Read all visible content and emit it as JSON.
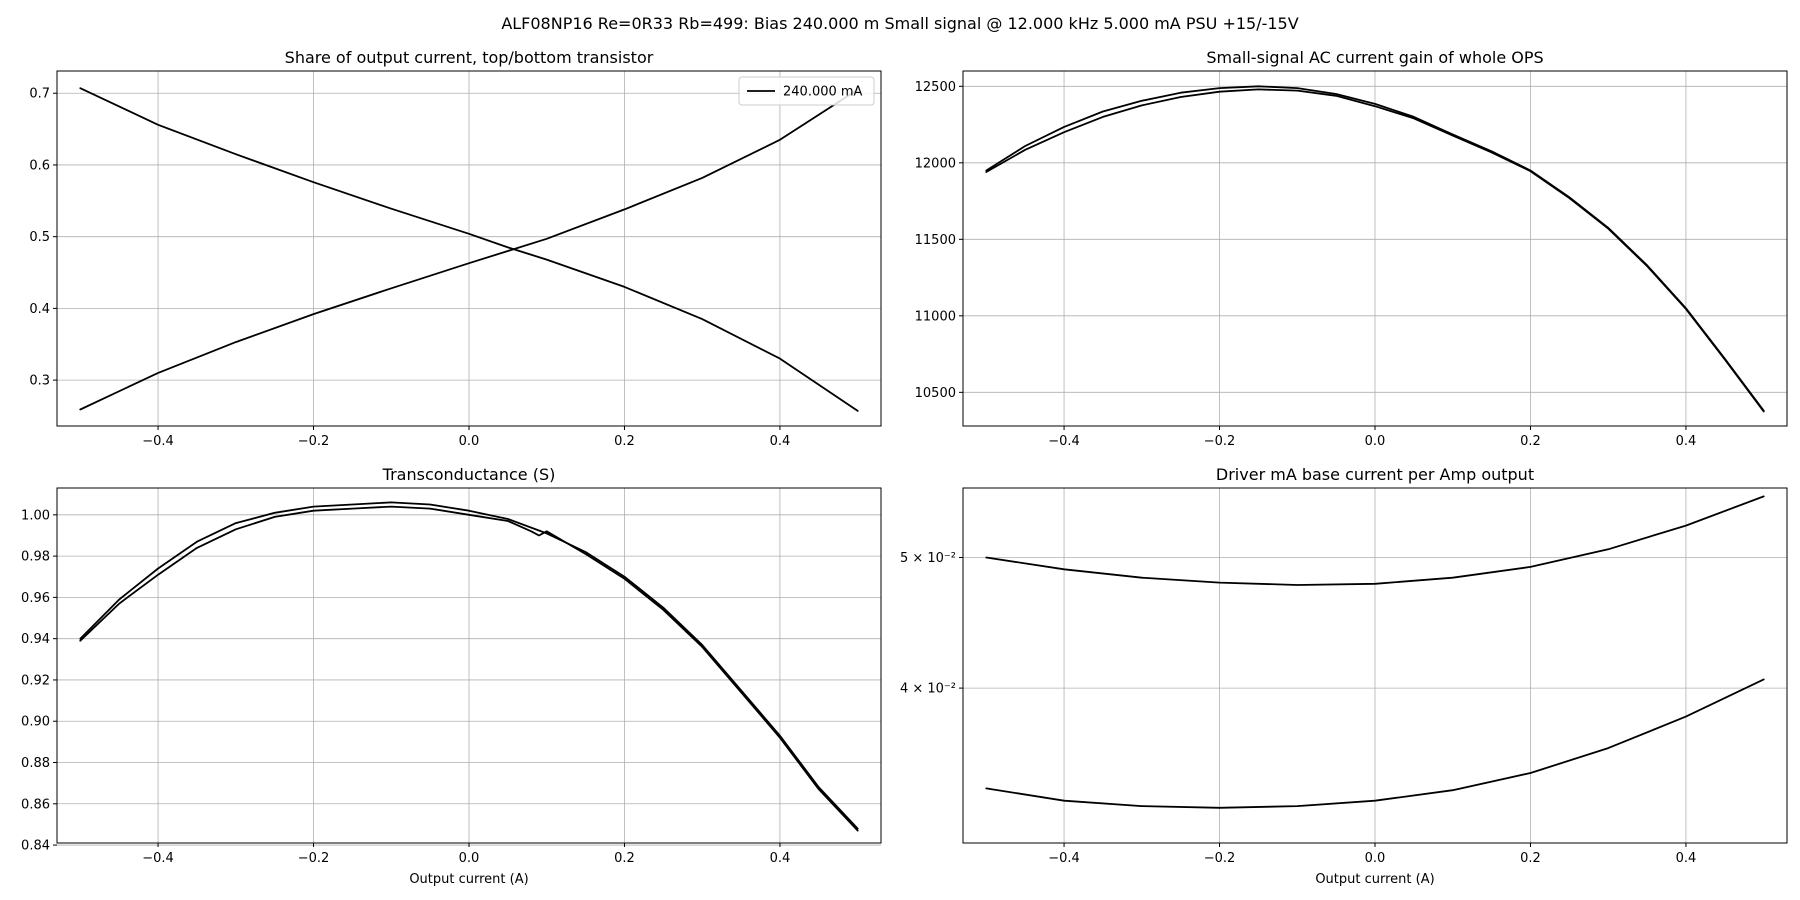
{
  "figure": {
    "suptitle": "ALF08NP16 Re=0R33 Rb=499: Bias 240.000 m Small signal @ 12.000 kHz 5.000 mA PSU +15/-15V"
  },
  "chart_data": [
    {
      "id": "p0",
      "type": "line",
      "title": "Share of output current, top/bottom transistor",
      "xlabel": "",
      "ylabel": "",
      "xlim": [
        -0.53,
        0.53
      ],
      "ylim": [
        0.236,
        0.731
      ],
      "yscale": "linear",
      "xticks": [
        -0.4,
        -0.2,
        0.0,
        0.2,
        0.4
      ],
      "xtick_labels": [
        "−0.4",
        "−0.2",
        "0.0",
        "0.2",
        "0.4"
      ],
      "yticks": [
        0.3,
        0.4,
        0.5,
        0.6,
        0.7
      ],
      "ytick_labels": [
        "0.3",
        "0.4",
        "0.5",
        "0.6",
        "0.7"
      ],
      "grid": true,
      "legend": {
        "position": "top-right",
        "entries": [
          "240.000 mA"
        ]
      },
      "series": [
        {
          "color": "#000000",
          "x": [
            -0.5,
            -0.4,
            -0.3,
            -0.2,
            -0.1,
            0.0,
            0.05,
            0.1,
            0.2,
            0.3,
            0.4,
            0.5
          ],
          "y": [
            0.707,
            0.656,
            0.615,
            0.576,
            0.539,
            0.504,
            0.485,
            0.468,
            0.43,
            0.385,
            0.33,
            0.257
          ]
        },
        {
          "color": "#000000",
          "x": [
            -0.5,
            -0.4,
            -0.3,
            -0.2,
            -0.1,
            0.0,
            0.05,
            0.1,
            0.2,
            0.3,
            0.4,
            0.5
          ],
          "y": [
            0.259,
            0.31,
            0.353,
            0.392,
            0.428,
            0.463,
            0.48,
            0.497,
            0.538,
            0.582,
            0.635,
            0.705
          ]
        }
      ]
    },
    {
      "id": "p1",
      "type": "line",
      "title": "Small-signal AC current gain of whole OPS",
      "xlabel": "",
      "ylabel": "",
      "xlim": [
        -0.53,
        0.53
      ],
      "ylim": [
        10280,
        12600
      ],
      "yscale": "linear",
      "xticks": [
        -0.4,
        -0.2,
        0.0,
        0.2,
        0.4
      ],
      "xtick_labels": [
        "−0.4",
        "−0.2",
        "0.0",
        "0.2",
        "0.4"
      ],
      "yticks": [
        10500,
        11000,
        11500,
        12000,
        12500
      ],
      "ytick_labels": [
        "10500",
        "11000",
        "11500",
        "12000",
        "12500"
      ],
      "grid": true,
      "series": [
        {
          "color": "#000000",
          "x": [
            -0.5,
            -0.45,
            -0.4,
            -0.35,
            -0.3,
            -0.25,
            -0.2,
            -0.15,
            -0.1,
            -0.05,
            0.0,
            0.05,
            0.1,
            0.15,
            0.2,
            0.25,
            0.3,
            0.35,
            0.4,
            0.45,
            0.5
          ],
          "y": [
            11950,
            12110,
            12235,
            12335,
            12405,
            12458,
            12488,
            12500,
            12488,
            12450,
            12385,
            12300,
            12185,
            12075,
            11950,
            11775,
            11575,
            11330,
            11050,
            10720,
            10380
          ]
        },
        {
          "color": "#000000",
          "x": [
            -0.5,
            -0.45,
            -0.4,
            -0.35,
            -0.3,
            -0.25,
            -0.2,
            -0.15,
            -0.1,
            -0.05,
            0.0,
            0.05,
            0.1,
            0.15,
            0.2,
            0.25,
            0.3,
            0.35,
            0.4,
            0.45,
            0.5
          ],
          "y": [
            11940,
            12085,
            12200,
            12300,
            12375,
            12430,
            12465,
            12480,
            12472,
            12438,
            12370,
            12290,
            12178,
            12068,
            11945,
            11770,
            11570,
            11325,
            11045,
            10715,
            10375
          ]
        }
      ]
    },
    {
      "id": "p2",
      "type": "line",
      "title": "Transconductance (S)",
      "xlabel": "Output current (A)",
      "ylabel": "",
      "xlim": [
        -0.53,
        0.53
      ],
      "ylim": [
        0.841,
        1.013
      ],
      "yscale": "linear",
      "xticks": [
        -0.4,
        -0.2,
        0.0,
        0.2,
        0.4
      ],
      "xtick_labels": [
        "−0.4",
        "−0.2",
        "0.0",
        "0.2",
        "0.4"
      ],
      "yticks": [
        0.84,
        0.86,
        0.88,
        0.9,
        0.92,
        0.94,
        0.96,
        0.98,
        1.0
      ],
      "ytick_labels": [
        "0.84",
        "0.86",
        "0.88",
        "0.90",
        "0.92",
        "0.94",
        "0.96",
        "0.98",
        "1.00"
      ],
      "grid": true,
      "series": [
        {
          "color": "#000000",
          "x": [
            -0.5,
            -0.45,
            -0.4,
            -0.35,
            -0.3,
            -0.25,
            -0.2,
            -0.15,
            -0.1,
            -0.05,
            0.0,
            0.05,
            0.1,
            0.15,
            0.2,
            0.25,
            0.3,
            0.35,
            0.4,
            0.45,
            0.5
          ],
          "y": [
            0.94,
            0.959,
            0.974,
            0.987,
            0.996,
            1.001,
            1.004,
            1.005,
            1.006,
            1.005,
            1.002,
            0.998,
            0.991,
            0.982,
            0.97,
            0.955,
            0.937,
            0.915,
            0.893,
            0.868,
            0.848
          ]
        },
        {
          "color": "#000000",
          "x": [
            -0.5,
            -0.45,
            -0.4,
            -0.35,
            -0.3,
            -0.25,
            -0.2,
            -0.15,
            -0.1,
            -0.05,
            0.0,
            0.05,
            0.08,
            0.09,
            0.1,
            0.15,
            0.2,
            0.25,
            0.3,
            0.35,
            0.4,
            0.45,
            0.5
          ],
          "y": [
            0.939,
            0.957,
            0.971,
            0.984,
            0.993,
            0.999,
            1.002,
            1.003,
            1.004,
            1.003,
            1.0,
            0.997,
            0.992,
            0.99,
            0.992,
            0.981,
            0.969,
            0.954,
            0.936,
            0.914,
            0.892,
            0.867,
            0.847
          ]
        }
      ]
    },
    {
      "id": "p3",
      "type": "line",
      "title": "Driver mA base current per Amp output",
      "xlabel": "Output current (A)",
      "ylabel": "",
      "xlim": [
        -0.53,
        0.53
      ],
      "ylim": [
        0.0307,
        0.0563
      ],
      "yscale": "log",
      "xticks": [
        -0.4,
        -0.2,
        0.0,
        0.2,
        0.4
      ],
      "xtick_labels": [
        "−0.4",
        "−0.2",
        "0.0",
        "0.2",
        "0.4"
      ],
      "yticks": [
        0.04,
        0.05
      ],
      "ytick_labels": [
        "4 × 10⁻²",
        "5 × 10⁻²"
      ],
      "grid": true,
      "series": [
        {
          "color": "#000000",
          "x": [
            -0.5,
            -0.4,
            -0.3,
            -0.2,
            -0.1,
            0.0,
            0.1,
            0.2,
            0.3,
            0.4,
            0.5
          ],
          "y": [
            0.05,
            0.049,
            0.0483,
            0.0479,
            0.0477,
            0.0478,
            0.0483,
            0.0492,
            0.0507,
            0.0528,
            0.0555
          ]
        },
        {
          "color": "#000000",
          "x": [
            -0.5,
            -0.4,
            -0.3,
            -0.2,
            -0.1,
            0.0,
            0.1,
            0.2,
            0.3,
            0.4,
            0.5
          ],
          "y": [
            0.0337,
            0.033,
            0.0327,
            0.0326,
            0.0327,
            0.033,
            0.0336,
            0.0346,
            0.0361,
            0.0381,
            0.0406
          ]
        }
      ]
    }
  ]
}
